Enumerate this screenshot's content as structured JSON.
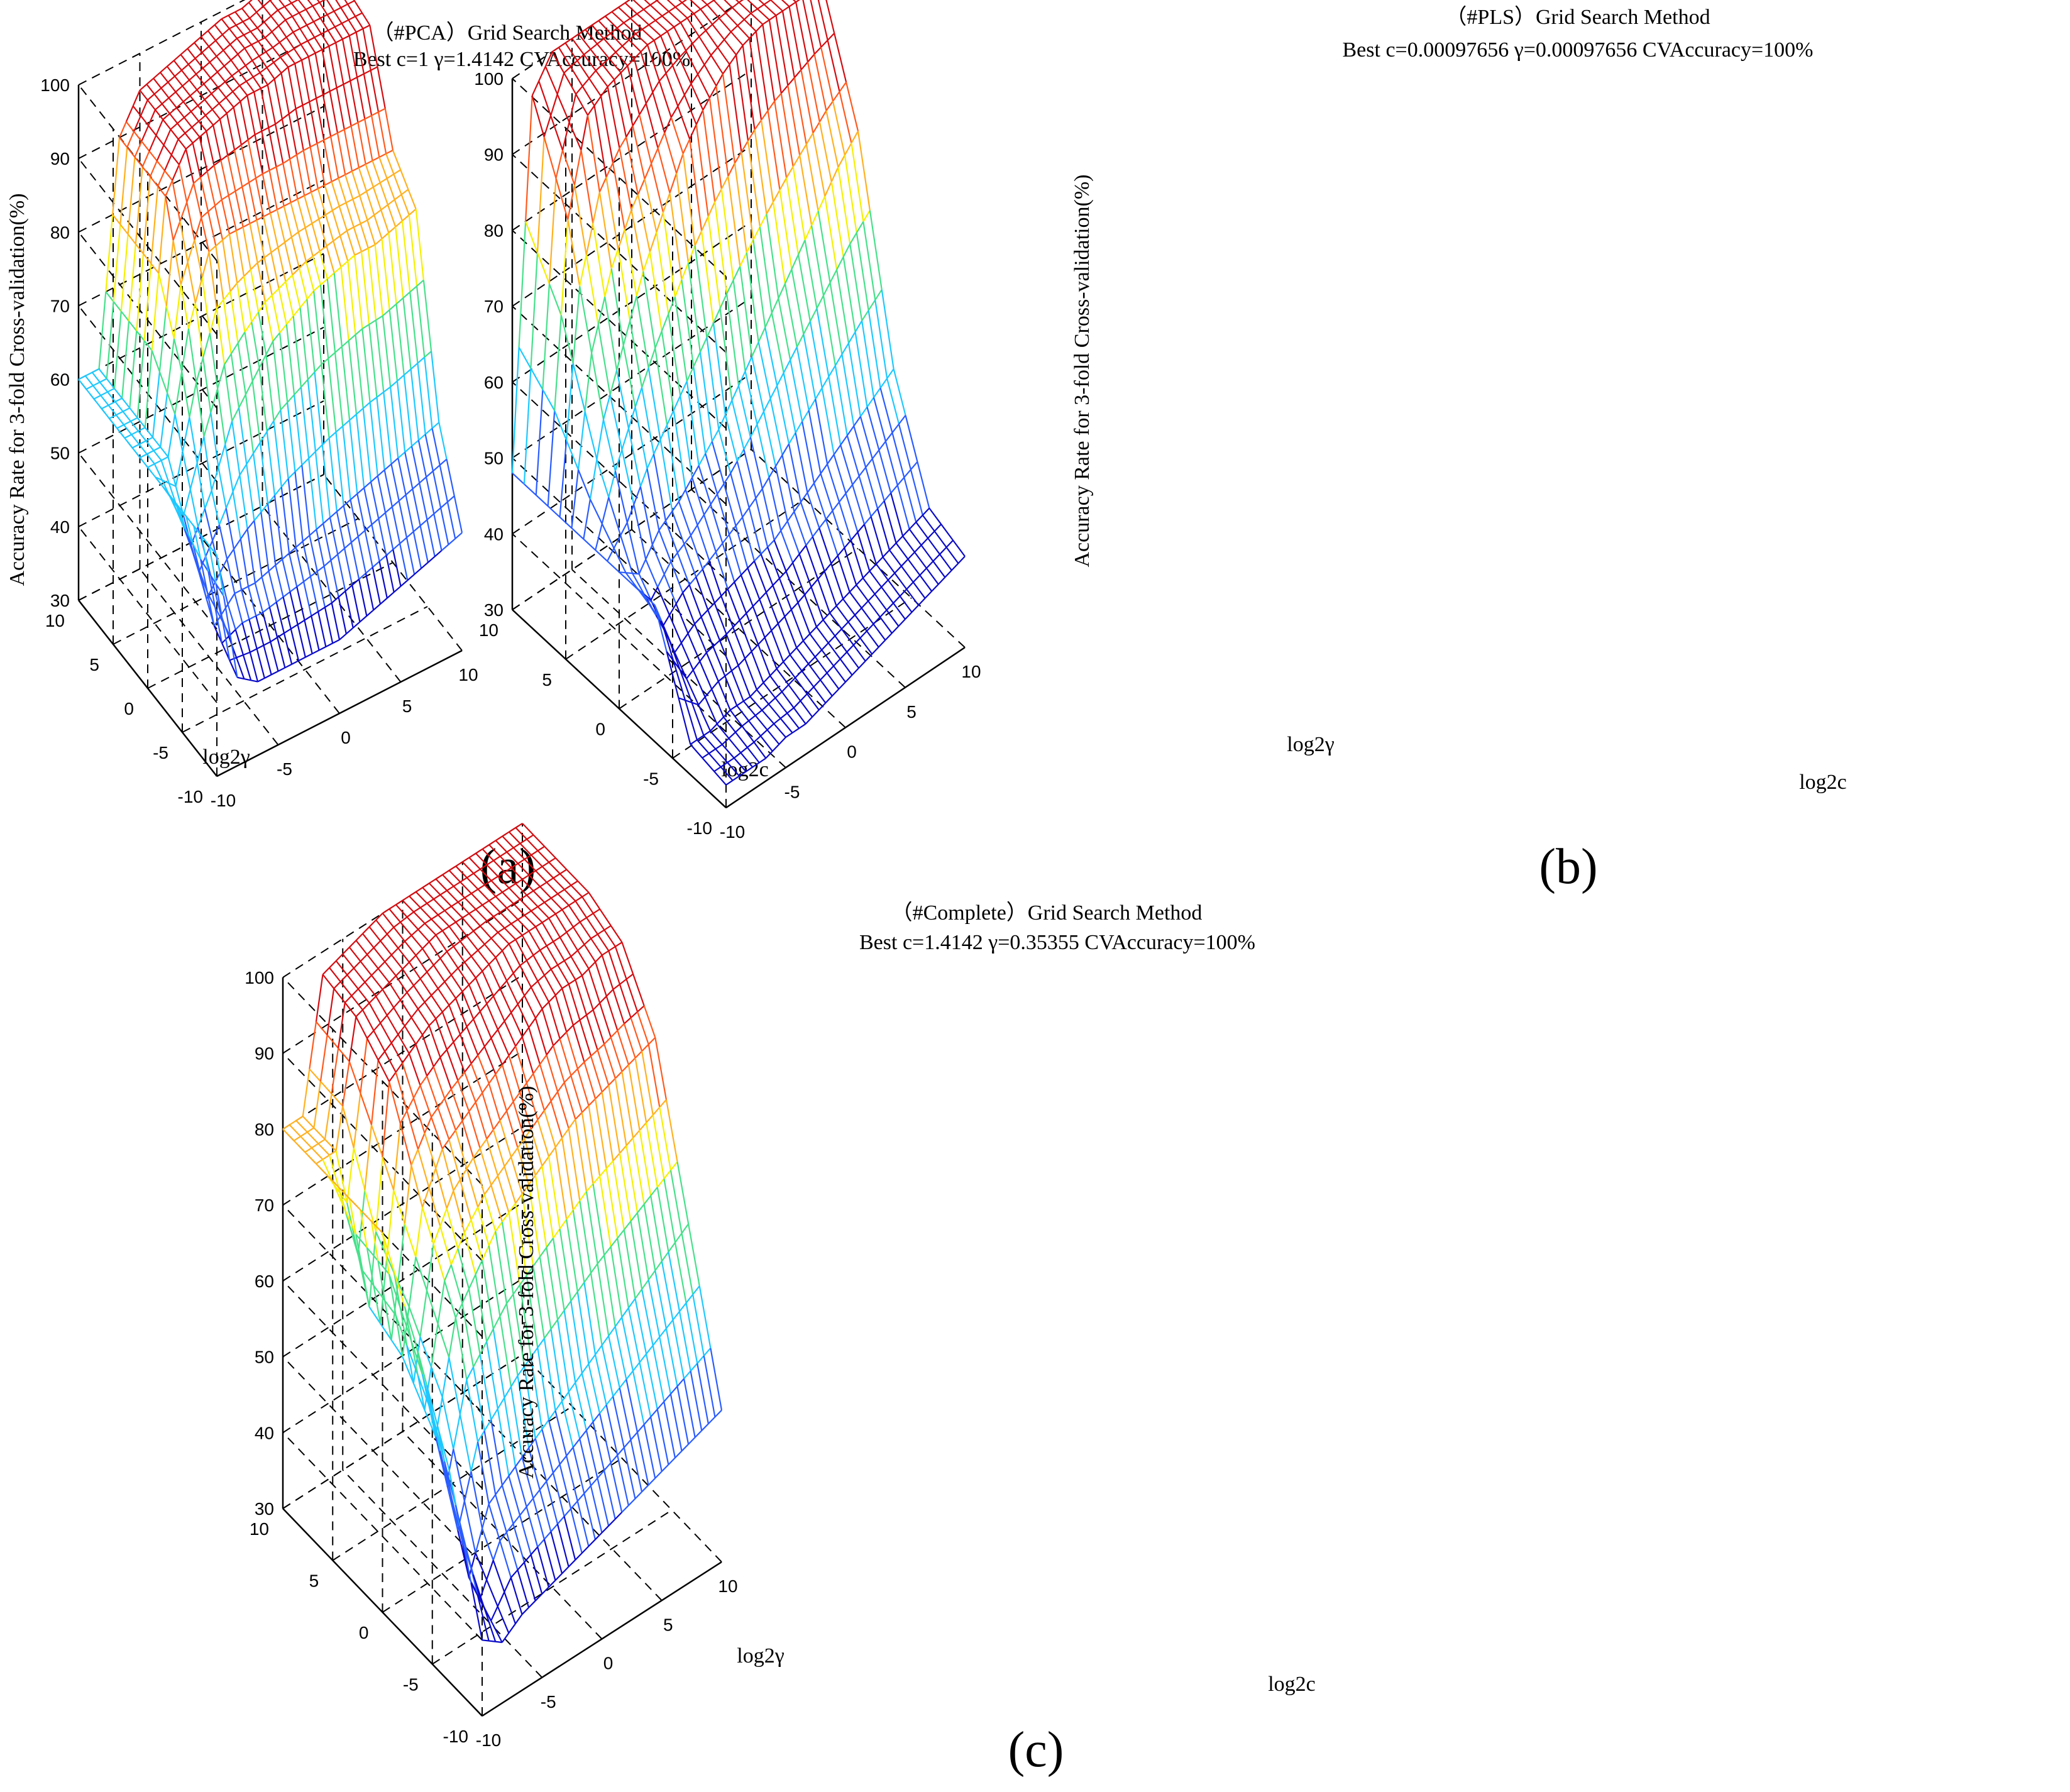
{
  "colors": {
    "level_30_45": "#0a0ac8",
    "level_45_55": "#2a5cff",
    "level_55_65": "#1ec8ff",
    "level_65_75": "#46e08a",
    "level_75_80": "#f5f000",
    "level_80_86": "#ffb020",
    "level_86_92": "#ff5a1e",
    "level_92_100": "#d40c10",
    "grid_line": "#000000"
  },
  "chart_data": [
    {
      "type": "surface",
      "panel_label": "(a)",
      "title": "（#PCA）Grid Search Method",
      "subtitle": "Best c=1 γ=1.4142 CVAccuracy=100%",
      "xlabel": "log2c",
      "ylabel": "log2γ",
      "zlabel": "Accuracy Rate for 3-fold Cross-validation(%)",
      "xlim": [
        -10,
        10
      ],
      "ylim": [
        -10,
        10
      ],
      "zlim": [
        30,
        100
      ],
      "x_ticks": [
        "-10",
        "-5",
        "0",
        "5",
        "10"
      ],
      "y_ticks": [
        "-10",
        "-5",
        "0",
        "5",
        "10"
      ],
      "z_ticks": [
        "30",
        "40",
        "50",
        "60",
        "70",
        "80",
        "90",
        "100"
      ],
      "surface": [
        [
          60,
          42,
          40,
          40,
          40,
          40,
          40,
          41,
          42,
          43,
          44,
          45,
          46
        ],
        [
          60,
          45,
          48,
          48,
          49,
          50,
          51,
          52,
          53,
          54,
          55,
          56,
          57
        ],
        [
          60,
          52,
          58,
          66,
          70,
          74,
          76,
          78,
          79,
          80,
          80,
          81,
          82
        ],
        [
          60,
          60,
          76,
          85,
          86,
          86,
          86,
          86,
          86,
          86,
          86,
          86,
          86
        ],
        [
          60,
          60,
          90,
          95,
          96,
          97,
          98,
          98,
          99,
          99,
          99,
          99,
          99
        ],
        [
          60,
          60,
          90,
          95,
          96,
          97,
          98,
          99,
          99,
          100,
          100,
          100,
          100
        ],
        [
          60,
          60,
          90,
          95,
          96,
          97,
          98,
          99,
          99,
          100,
          100,
          100,
          100
        ]
      ]
    },
    {
      "type": "surface",
      "panel_label": "(b)",
      "title": "（#PLS）Grid Search Method",
      "subtitle": "Best c=0.00097656 γ=0.00097656 CVAccuracy=100%",
      "xlabel": "log2c",
      "ylabel": "log2γ",
      "zlabel": "Accuracy Rate for 3-fold Cross-validation(%)",
      "xlim": [
        -10,
        10
      ],
      "ylim": [
        -10,
        10
      ],
      "zlim": [
        30,
        100
      ],
      "x_ticks": [
        "-10",
        "-5",
        "0",
        "5",
        "10"
      ],
      "y_ticks": [
        "-10",
        "-5",
        "0",
        "5",
        "10"
      ],
      "z_ticks": [
        "30",
        "40",
        "50",
        "60",
        "70",
        "80",
        "90",
        "100"
      ],
      "surface": [
        [
          33,
          33,
          33,
          34,
          34,
          35,
          36,
          37,
          38,
          39,
          40,
          41,
          42
        ],
        [
          34,
          34,
          35,
          35,
          36,
          37,
          38,
          39,
          40,
          41,
          42,
          43,
          44
        ],
        [
          48,
          40,
          42,
          43,
          44,
          45,
          46,
          48,
          50,
          52,
          54,
          56,
          58
        ],
        [
          48,
          46,
          50,
          52,
          55,
          58,
          62,
          66,
          70,
          74,
          78,
          82,
          85
        ],
        [
          48,
          62,
          70,
          78,
          84,
          90,
          94,
          97,
          99,
          100,
          100,
          100,
          100
        ],
        [
          48,
          84,
          96,
          98,
          99,
          100,
          100,
          100,
          100,
          100,
          100,
          100,
          100
        ],
        [
          48,
          96,
          100,
          100,
          100,
          100,
          100,
          100,
          100,
          100,
          100,
          100,
          100
        ]
      ]
    },
    {
      "type": "surface",
      "panel_label": "(c)",
      "title": "（#Complete）Grid Search Method",
      "subtitle": "Best c=1.4142 γ=0.35355 CVAccuracy=100%",
      "xlabel": "log2c",
      "ylabel": "log2γ",
      "zlabel": "Accuracy Rate for 3-fold Cross-validation(%)",
      "xlim": [
        -10,
        10
      ],
      "ylim": [
        -10,
        10
      ],
      "zlim": [
        30,
        100
      ],
      "x_ticks": [
        "-10",
        "-5",
        "0",
        "5",
        "10"
      ],
      "y_ticks": [
        "-10",
        "-5",
        "0",
        "5",
        "10"
      ],
      "z_ticks": [
        "30",
        "40",
        "50",
        "60",
        "70",
        "80",
        "90",
        "100"
      ],
      "surface": [
        [
          40,
          38,
          40,
          41,
          42,
          43,
          44,
          45,
          46,
          47,
          48,
          49,
          50
        ],
        [
          58,
          42,
          50,
          52,
          54,
          56,
          58,
          60,
          62,
          64,
          66,
          68,
          70
        ],
        [
          70,
          56,
          70,
          74,
          78,
          80,
          82,
          84,
          86,
          87,
          88,
          89,
          90
        ],
        [
          80,
          62,
          80,
          86,
          88,
          90,
          92,
          94,
          96,
          97,
          97,
          98,
          98
        ],
        [
          80,
          64,
          92,
          94,
          96,
          97,
          98,
          99,
          100,
          100,
          100,
          100,
          100
        ],
        [
          80,
          80,
          96,
          97,
          98,
          99,
          100,
          100,
          100,
          100,
          100,
          100,
          100
        ],
        [
          80,
          80,
          97,
          98,
          99,
          100,
          100,
          100,
          100,
          100,
          100,
          100,
          100
        ]
      ]
    }
  ]
}
